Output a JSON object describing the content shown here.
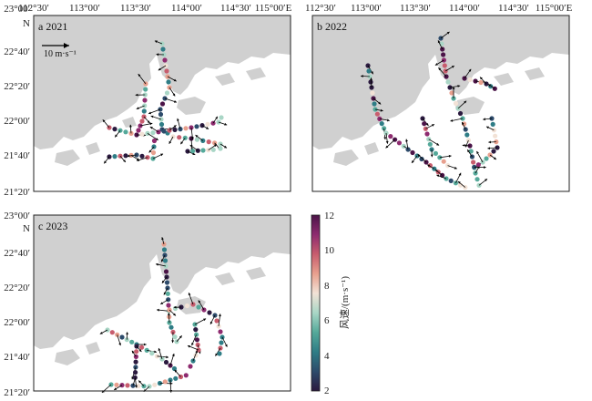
{
  "panels": [
    {
      "id": "a",
      "label": "a 2021",
      "scale_label": "10 m·s⁻¹",
      "x_ticks": [
        "112°30′",
        "113°00′",
        "113°30′",
        "114°00′",
        "114°30′",
        "115°00′E"
      ],
      "y_ticks": [
        "23°00′",
        "22°40′",
        "22°20′",
        "22°00′",
        "21°40′",
        "21°20′"
      ],
      "y_north": "N"
    },
    {
      "id": "b",
      "label": "b 2022",
      "x_ticks": [
        "112°30′",
        "113°00′",
        "113°30′",
        "114°00′",
        "114°30′",
        "115°00′E"
      ]
    },
    {
      "id": "c",
      "label": "c 2023",
      "y_ticks": [
        "23°00′",
        "22°40′",
        "22°20′",
        "22°00′",
        "21°40′",
        "21°20′"
      ],
      "y_north": "N"
    }
  ],
  "colorbar": {
    "label": "风速/(m·s⁻¹)",
    "ticks": [
      "12",
      "10",
      "8",
      "6",
      "4",
      "2"
    ],
    "min": 2,
    "max": 12,
    "colors": [
      "#2b1a3f",
      "#2d4b6b",
      "#2f7d86",
      "#55a99a",
      "#a9d6c6",
      "#f2e2d6",
      "#e8a08e",
      "#c85d6e",
      "#8e2b6f",
      "#4b1448"
    ]
  },
  "colors": {
    "land": "#d0d0d0",
    "sea": "#ffffff",
    "frame": "#222222",
    "arrow": "#000000"
  }
}
